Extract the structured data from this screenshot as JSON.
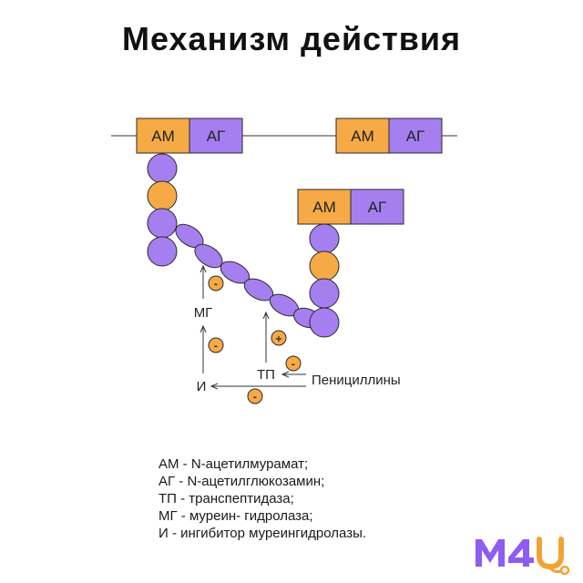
{
  "title": "Механизм действия",
  "blocks": {
    "am_label": "АМ",
    "ag_label": "АГ"
  },
  "labels": {
    "mg": "МГ",
    "tp": "ТП",
    "i": "И",
    "penicillins": "Пенициллины"
  },
  "signs": {
    "minus": "-",
    "plus": "+"
  },
  "legend": [
    "АМ - N-ацетилмурамат;",
    "АГ - N-ацетилглюкозамин;",
    "ТП - транспептидаза;",
    "МГ - муреин- гидролаза;",
    "И - ингибитор муреингидролазы."
  ],
  "logo": {
    "text": "M4U"
  },
  "colors": {
    "orange": "#F5AA45",
    "purple": "#A57FF0",
    "stroke": "#2a2a2a",
    "logo_purple": "#8E5CF0",
    "logo_orange": "#F2A335"
  }
}
